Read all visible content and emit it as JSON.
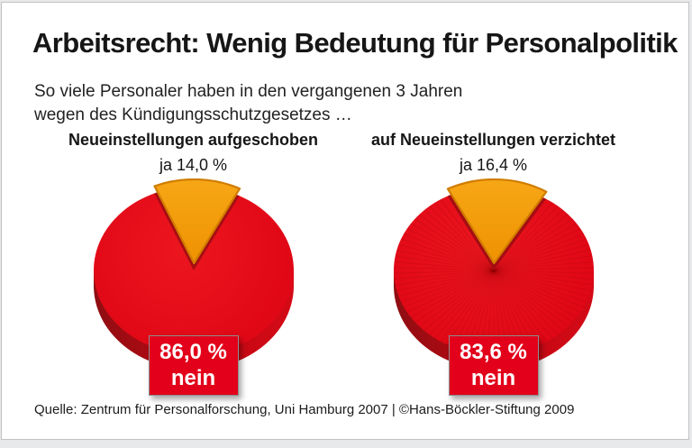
{
  "header": {
    "title": "Arbeitsrecht: Wenig Bedeutung für Personalpolitik",
    "subtitle_line1": "So viele Personaler haben in den vergangenen 3 Jahren",
    "subtitle_line2": "wegen des Kündigungsschutzgesetzes …"
  },
  "colors": {
    "red": "#E2001A",
    "red_dark": "#A60D12",
    "orange": "#F59C00",
    "orange_dark": "#D07C00",
    "text": "#1A1A1A"
  },
  "chart_data": [
    {
      "type": "pie",
      "title": "Neueinstellungen aufgeschoben",
      "ja_label": "ja 14,0 %",
      "slices": [
        {
          "label": "ja",
          "value": 14.0,
          "color": "#F59C00"
        },
        {
          "label": "nein",
          "value": 86.0,
          "color": "#E2001A"
        }
      ],
      "box": {
        "line1": "86,0 %",
        "line2": "nein"
      },
      "texture": "none",
      "legend": "none",
      "style": "3d-exploded-top-slice"
    },
    {
      "type": "pie",
      "title": "auf Neueinstellungen verzichtet",
      "ja_label": "ja 16,4 %",
      "slices": [
        {
          "label": "ja",
          "value": 16.4,
          "color": "#F59C00"
        },
        {
          "label": "nein",
          "value": 83.6,
          "color": "#E2001A"
        }
      ],
      "box": {
        "line1": "83,6 %",
        "line2": "nein"
      },
      "texture": "radial-stripes",
      "legend": "none",
      "style": "3d-exploded-top-slice"
    }
  ],
  "footer": {
    "source": "Quelle: Zentrum für Personalforschung, Uni Hamburg 2007 | ©Hans-Böckler-Stiftung 2009"
  }
}
